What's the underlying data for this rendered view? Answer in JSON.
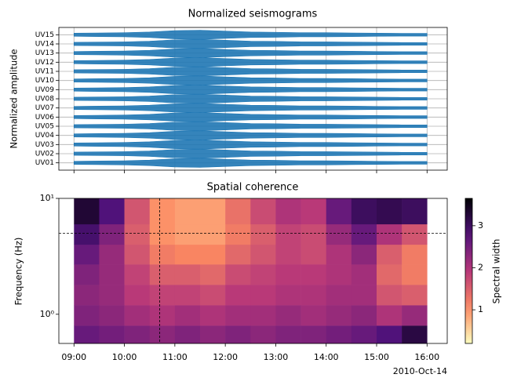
{
  "chart_data": [
    {
      "type": "seismogram",
      "title": "Normalized seismograms",
      "ylabel": "Normalized amplitude",
      "xlim": [
        8.7,
        16.4
      ],
      "xticks": [
        9,
        10,
        11,
        12,
        13,
        14,
        15,
        16
      ],
      "ylim": [
        0.2,
        15.8
      ],
      "yticks": [
        {
          "value": 1,
          "label": "UV01"
        },
        {
          "value": 2,
          "label": "UV02"
        },
        {
          "value": 3,
          "label": "UV03"
        },
        {
          "value": 4,
          "label": "UV04"
        },
        {
          "value": 5,
          "label": "UV05"
        },
        {
          "value": 6,
          "label": "UV06"
        },
        {
          "value": 7,
          "label": "UV07"
        },
        {
          "value": 8,
          "label": "UV08"
        },
        {
          "value": 9,
          "label": "UV09"
        },
        {
          "value": 10,
          "label": "UV10"
        },
        {
          "value": 11,
          "label": "UV11"
        },
        {
          "value": 12,
          "label": "UV12"
        },
        {
          "value": 13,
          "label": "UV13"
        },
        {
          "value": 14,
          "label": "UV14"
        },
        {
          "value": 15,
          "label": "UV15"
        }
      ],
      "grid": true,
      "color": "#1f77b4",
      "x": [
        9,
        9.5,
        10,
        10.5,
        11,
        11.5,
        12,
        12.5,
        13,
        13.5,
        14,
        14.5,
        15,
        15.5,
        16
      ],
      "values": [
        0.35,
        0.4,
        0.45,
        0.6,
        0.9,
        1.0,
        0.8,
        0.6,
        0.55,
        0.45,
        0.45,
        0.4,
        0.35,
        0.3,
        0.3
      ]
    },
    {
      "type": "spectrogram",
      "title": "Spatial coherence",
      "ylabel": "Frequency (Hz)",
      "xlabel": "2010-Oct-14",
      "xlim": [
        8.7,
        16.4
      ],
      "xticks": [
        {
          "value": 9,
          "label": "09:00"
        },
        {
          "value": 10,
          "label": "10:00"
        },
        {
          "value": 11,
          "label": "11:00"
        },
        {
          "value": 12,
          "label": "12:00"
        },
        {
          "value": 13,
          "label": "13:00"
        },
        {
          "value": 14,
          "label": "14:00"
        },
        {
          "value": 15,
          "label": "15:00"
        },
        {
          "value": 16,
          "label": "16:00"
        }
      ],
      "ylim": [
        0.56,
        10
      ],
      "log_y": true,
      "yticks": [
        {
          "value": 1,
          "label": "10⁰"
        },
        {
          "value": 10,
          "label": "10¹"
        }
      ],
      "x_edges": [
        9,
        9.5,
        10,
        10.5,
        11,
        11.5,
        12,
        12.5,
        13,
        13.5,
        14,
        14.5,
        15,
        15.5,
        16
      ],
      "y_edges": [
        0.56,
        0.8,
        1.2,
        1.8,
        2.7,
        4,
        6,
        10
      ],
      "values": [
        [
          2.6,
          2.5,
          2.4,
          2.3,
          2.4,
          2.3,
          2.4,
          2.3,
          2.4,
          2.4,
          2.5,
          2.6,
          2.8,
          3.2
        ],
        [
          2.4,
          2.3,
          2.1,
          2.0,
          2.1,
          2.0,
          2.1,
          2.1,
          2.2,
          2.1,
          2.2,
          2.3,
          2.0,
          2.2
        ],
        [
          2.3,
          2.2,
          1.9,
          1.8,
          1.8,
          1.7,
          1.9,
          1.9,
          2.0,
          2.0,
          2.1,
          2.1,
          1.6,
          1.5
        ],
        [
          2.4,
          2.2,
          1.8,
          1.5,
          1.5,
          1.4,
          1.7,
          1.8,
          1.9,
          1.9,
          2.0,
          2.1,
          1.4,
          1.2
        ],
        [
          2.6,
          2.2,
          1.6,
          1.2,
          1.1,
          1.1,
          1.4,
          1.6,
          1.8,
          1.7,
          2.0,
          2.3,
          1.5,
          1.2
        ],
        [
          2.9,
          2.4,
          1.5,
          1.0,
          0.9,
          0.9,
          1.2,
          1.5,
          1.8,
          1.7,
          2.2,
          2.6,
          2.0,
          1.6
        ],
        [
          3.3,
          2.8,
          1.6,
          1.0,
          0.9,
          0.9,
          1.3,
          1.7,
          2.0,
          1.9,
          2.6,
          3.0,
          3.1,
          3.0
        ]
      ],
      "colormap": "magma_r",
      "clim": [
        0.2,
        3.65
      ],
      "cticks": [
        1,
        2,
        3
      ],
      "colorbar_label": "Spectral width",
      "hlines": [
        5
      ],
      "vlines": [
        10.7
      ]
    }
  ]
}
